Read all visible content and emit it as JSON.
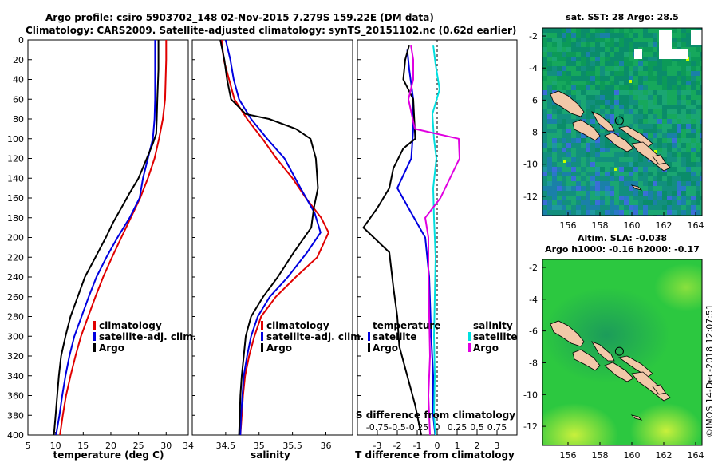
{
  "title": {
    "line1": "Argo profile: csiro 5903702_148 02-Nov-2015 7.279S 159.22E (DM data)",
    "line2": "Climatology: CARS2009. Satellite-adjusted climatology: synTS_20151102.nc (0.62d earlier)"
  },
  "credit": "©IMOS 14-Dec-2018 12:07:51",
  "colors": {
    "climatology": "#e00000",
    "satellite": "#0000e0",
    "argo": "#000000",
    "sat_sal": "#00e0e0",
    "argo_sal": "#e000e0",
    "land": "#f2c8a8",
    "sst_bg": "#14a05a",
    "sla_bg": "#2cc840",
    "mark": "#00ff00"
  },
  "chart_data": [
    {
      "type": "line",
      "id": "temperature",
      "xlabel": "temperature (deg C)",
      "xlim": [
        5,
        34
      ],
      "ylim": [
        400,
        0
      ],
      "xticks": [
        5,
        10,
        15,
        20,
        25,
        30,
        34
      ],
      "yticks": [
        0,
        20,
        40,
        60,
        80,
        100,
        120,
        140,
        160,
        180,
        200,
        220,
        240,
        260,
        280,
        300,
        320,
        340,
        360,
        380,
        400
      ],
      "legend": [
        "climatology",
        "satellite-adj. clim.",
        "Argo"
      ],
      "series": [
        {
          "name": "climatology",
          "color": "#e00000",
          "points": [
            [
              30.0,
              0
            ],
            [
              30.0,
              20
            ],
            [
              29.9,
              40
            ],
            [
              29.8,
              60
            ],
            [
              29.4,
              80
            ],
            [
              28.7,
              100
            ],
            [
              27.9,
              120
            ],
            [
              26.7,
              140
            ],
            [
              25.3,
              160
            ],
            [
              23.6,
              180
            ],
            [
              21.9,
              200
            ],
            [
              20.2,
              220
            ],
            [
              18.6,
              240
            ],
            [
              17.2,
              260
            ],
            [
              15.9,
              280
            ],
            [
              14.6,
              300
            ],
            [
              13.6,
              320
            ],
            [
              12.7,
              340
            ],
            [
              11.9,
              360
            ],
            [
              11.3,
              380
            ],
            [
              10.8,
              400
            ]
          ]
        },
        {
          "name": "satellite-adj. clim.",
          "color": "#0000e0",
          "points": [
            [
              28.0,
              0
            ],
            [
              28.0,
              30
            ],
            [
              28.0,
              60
            ],
            [
              27.9,
              80
            ],
            [
              27.6,
              100
            ],
            [
              26.7,
              120
            ],
            [
              25.8,
              140
            ],
            [
              25.2,
              160
            ],
            [
              23.4,
              180
            ],
            [
              21.2,
              200
            ],
            [
              19.2,
              220
            ],
            [
              17.4,
              240
            ],
            [
              16.0,
              260
            ],
            [
              14.7,
              280
            ],
            [
              13.4,
              300
            ],
            [
              12.5,
              320
            ],
            [
              11.8,
              340
            ],
            [
              11.2,
              360
            ],
            [
              10.7,
              380
            ],
            [
              10.1,
              400
            ]
          ]
        },
        {
          "name": "Argo",
          "color": "#000000",
          "points": [
            [
              28.6,
              0
            ],
            [
              28.6,
              30
            ],
            [
              28.4,
              60
            ],
            [
              28.3,
              80
            ],
            [
              28.2,
              95
            ],
            [
              27.6,
              105
            ],
            [
              26.5,
              120
            ],
            [
              25.0,
              140
            ],
            [
              23.4,
              155
            ],
            [
              21.9,
              170
            ],
            [
              20.4,
              185
            ],
            [
              19.1,
              200
            ],
            [
              17.2,
              220
            ],
            [
              15.3,
              240
            ],
            [
              14.0,
              260
            ],
            [
              12.7,
              280
            ],
            [
              11.8,
              300
            ],
            [
              11.0,
              320
            ],
            [
              10.6,
              340
            ],
            [
              10.3,
              360
            ],
            [
              10.0,
              380
            ],
            [
              9.7,
              400
            ]
          ]
        }
      ]
    },
    {
      "type": "line",
      "id": "salinity",
      "xlabel": "salinity",
      "xlim": [
        34,
        36.4
      ],
      "ylim": [
        400,
        0
      ],
      "xticks": [
        34.5,
        35,
        35.5,
        36
      ],
      "legend": [
        "climatology",
        "satellite-adj. clim.",
        "Argo"
      ],
      "series": [
        {
          "name": "climatology",
          "color": "#e00000",
          "points": [
            [
              34.44,
              0
            ],
            [
              34.47,
              20
            ],
            [
              34.55,
              40
            ],
            [
              34.63,
              60
            ],
            [
              34.82,
              80
            ],
            [
              35.05,
              100
            ],
            [
              35.26,
              120
            ],
            [
              35.5,
              140
            ],
            [
              35.7,
              160
            ],
            [
              35.93,
              180
            ],
            [
              36.04,
              195
            ],
            [
              35.87,
              220
            ],
            [
              35.55,
              240
            ],
            [
              35.25,
              260
            ],
            [
              35.03,
              280
            ],
            [
              34.93,
              300
            ],
            [
              34.85,
              320
            ],
            [
              34.79,
              340
            ],
            [
              34.76,
              360
            ],
            [
              34.74,
              380
            ],
            [
              34.72,
              400
            ]
          ]
        },
        {
          "name": "satellite-adj. clim.",
          "color": "#0000e0",
          "points": [
            [
              34.5,
              0
            ],
            [
              34.57,
              20
            ],
            [
              34.62,
              40
            ],
            [
              34.7,
              60
            ],
            [
              34.88,
              80
            ],
            [
              35.12,
              100
            ],
            [
              35.38,
              120
            ],
            [
              35.62,
              150
            ],
            [
              35.83,
              175
            ],
            [
              35.92,
              195
            ],
            [
              35.72,
              215
            ],
            [
              35.43,
              240
            ],
            [
              35.16,
              260
            ],
            [
              34.98,
              280
            ],
            [
              34.88,
              300
            ],
            [
              34.82,
              320
            ],
            [
              34.77,
              340
            ],
            [
              34.75,
              360
            ],
            [
              34.73,
              380
            ],
            [
              34.72,
              400
            ]
          ]
        },
        {
          "name": "Argo",
          "color": "#000000",
          "points": [
            [
              34.42,
              0
            ],
            [
              34.48,
              20
            ],
            [
              34.52,
              40
            ],
            [
              34.58,
              60
            ],
            [
              34.8,
              75
            ],
            [
              35.15,
              80
            ],
            [
              35.55,
              90
            ],
            [
              35.77,
              100
            ],
            [
              35.85,
              120
            ],
            [
              35.88,
              150
            ],
            [
              35.82,
              170
            ],
            [
              35.78,
              190
            ],
            [
              35.52,
              215
            ],
            [
              35.28,
              240
            ],
            [
              35.06,
              260
            ],
            [
              34.88,
              280
            ],
            [
              34.8,
              300
            ],
            [
              34.77,
              320
            ],
            [
              34.74,
              340
            ],
            [
              34.72,
              360
            ],
            [
              34.71,
              380
            ],
            [
              34.7,
              400
            ]
          ]
        }
      ]
    },
    {
      "type": "line",
      "id": "difference",
      "xlabel": "T difference from climatology",
      "top_label": "S difference from climatology",
      "xlim": [
        -4,
        4
      ],
      "ylim": [
        400,
        0
      ],
      "xticks": [
        -3,
        -2,
        -1,
        0,
        1,
        2,
        3
      ],
      "sticks_label": [
        "-0.75",
        "-0.5",
        "-0.25",
        "0",
        "0.25",
        "0.5",
        "0.75"
      ],
      "legend_left_title": "temperature",
      "legend_right_title": "salinity",
      "legend": [
        "satellite",
        "Argo",
        "satellite",
        "Argo"
      ],
      "series": [
        {
          "name": "satellite",
          "kind": "temperature",
          "color": "#0000e0",
          "points": [
            [
              -1.5,
              10
            ],
            [
              -1.4,
              30
            ],
            [
              -1.2,
              60
            ],
            [
              -1.2,
              90
            ],
            [
              -1.3,
              120
            ],
            [
              -2.0,
              150
            ],
            [
              -1.3,
              175
            ],
            [
              -0.6,
              200
            ],
            [
              -0.4,
              240
            ],
            [
              -0.3,
              300
            ],
            [
              -0.2,
              340
            ],
            [
              -0.2,
              380
            ],
            [
              -0.1,
              400
            ]
          ]
        },
        {
          "name": "Argo",
          "kind": "temperature",
          "color": "#000000",
          "points": [
            [
              -1.4,
              5
            ],
            [
              -1.6,
              20
            ],
            [
              -1.7,
              40
            ],
            [
              -1.2,
              60
            ],
            [
              -1.1,
              100
            ],
            [
              -1.7,
              110
            ],
            [
              -2.2,
              130
            ],
            [
              -2.4,
              150
            ],
            [
              -3.0,
              170
            ],
            [
              -3.7,
              190
            ],
            [
              -2.4,
              215
            ],
            [
              -2.2,
              250
            ],
            [
              -2.0,
              280
            ],
            [
              -1.9,
              310
            ],
            [
              -1.5,
              340
            ],
            [
              -1.1,
              370
            ],
            [
              -0.8,
              400
            ]
          ]
        },
        {
          "name": "satellite",
          "kind": "salinity",
          "color": "#00e0e0",
          "points": [
            [
              -0.05,
              5
            ],
            [
              -0.02,
              25
            ],
            [
              0.03,
              50
            ],
            [
              -0.06,
              75
            ],
            [
              -0.04,
              100
            ],
            [
              -0.01,
              120
            ],
            [
              -0.05,
              150
            ],
            [
              -0.04,
              180
            ],
            [
              -0.02,
              220
            ],
            [
              -0.03,
              260
            ],
            [
              -0.04,
              300
            ],
            [
              -0.03,
              340
            ],
            [
              -0.04,
              380
            ],
            [
              -0.02,
              400
            ]
          ]
        },
        {
          "name": "Argo",
          "kind": "salinity",
          "color": "#e000e0",
          "points": [
            [
              -0.33,
              5
            ],
            [
              -0.3,
              20
            ],
            [
              -0.3,
              40
            ],
            [
              -0.36,
              60
            ],
            [
              -0.28,
              90
            ],
            [
              0.27,
              100
            ],
            [
              0.28,
              120
            ],
            [
              0.04,
              160
            ],
            [
              -0.15,
              180
            ],
            [
              -0.11,
              200
            ],
            [
              -0.11,
              240
            ],
            [
              -0.1,
              280
            ],
            [
              -0.09,
              320
            ],
            [
              -0.11,
              360
            ],
            [
              -0.09,
              400
            ]
          ]
        }
      ]
    },
    {
      "type": "heatmap",
      "id": "sst_map",
      "title": "sat. SST: 28 Argo: 28.5",
      "xticks": [
        156,
        158,
        160,
        162,
        164
      ],
      "yticks": [
        -2,
        -4,
        -6,
        -8,
        -10,
        -12
      ],
      "xlim": [
        154.4,
        164.4
      ],
      "ylim": [
        -13.2,
        -1.5
      ],
      "argo_position": [
        159.22,
        -7.28
      ]
    },
    {
      "type": "heatmap",
      "id": "sla_map",
      "title_line1": "Altim. SLA: -0.038",
      "title_line2": "Argo h1000: -0.16 h2000: -0.17",
      "xticks": [
        156,
        158,
        160,
        162,
        164
      ],
      "yticks": [
        -2,
        -4,
        -6,
        -8,
        -10,
        -12
      ],
      "xlim": [
        154.4,
        164.4
      ],
      "ylim": [
        -13.2,
        -1.5
      ],
      "argo_position": [
        159.22,
        -7.28
      ]
    }
  ]
}
